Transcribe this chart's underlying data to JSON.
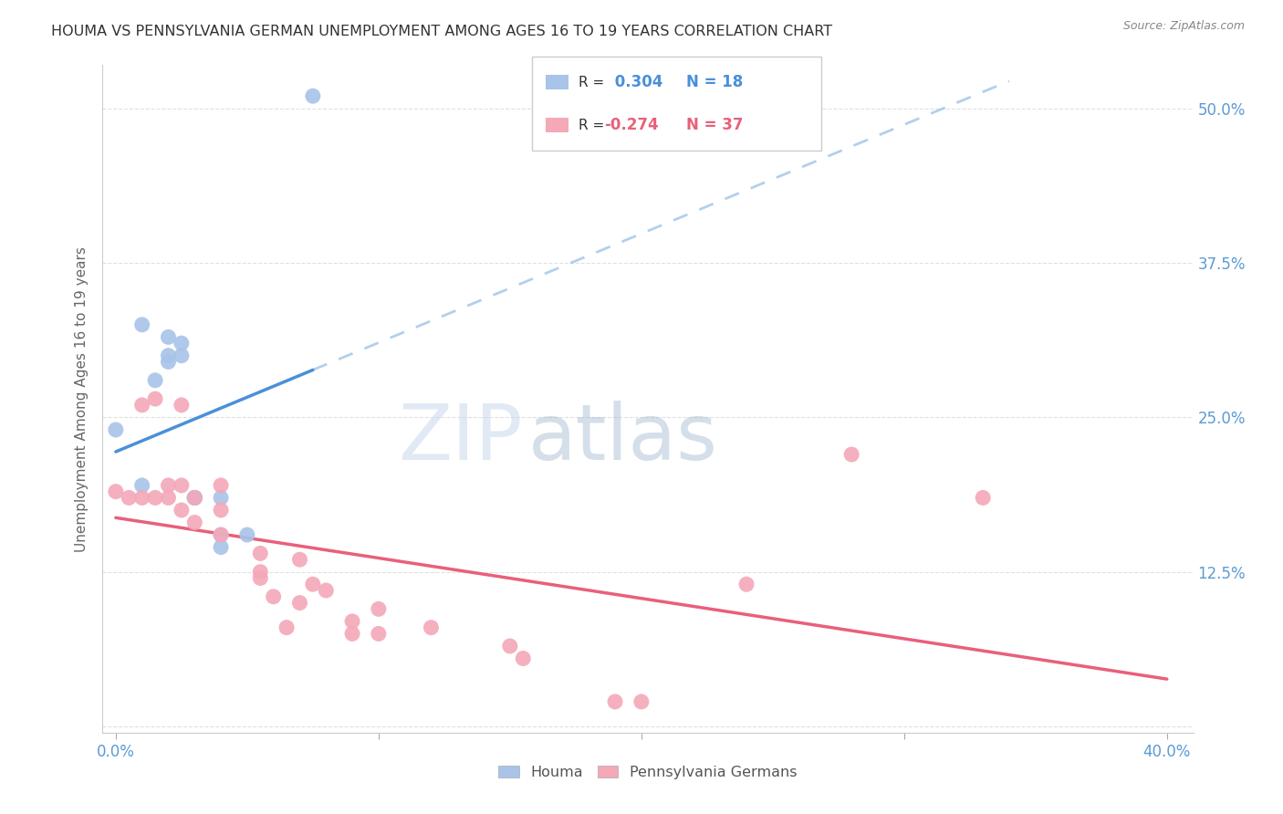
{
  "title": "HOUMA VS PENNSYLVANIA GERMAN UNEMPLOYMENT AMONG AGES 16 TO 19 YEARS CORRELATION CHART",
  "source": "Source: ZipAtlas.com",
  "ylabel": "Unemployment Among Ages 16 to 19 years",
  "y_ticks": [
    0.0,
    0.125,
    0.25,
    0.375,
    0.5
  ],
  "y_tick_labels": [
    "",
    "12.5%",
    "25.0%",
    "37.5%",
    "50.0%"
  ],
  "x_ticks": [
    0.0,
    0.1,
    0.2,
    0.3,
    0.4
  ],
  "xlim": [
    0.0,
    0.4
  ],
  "ylim": [
    0.0,
    0.52
  ],
  "houma_R": 0.304,
  "houma_N": 18,
  "pg_R": -0.274,
  "pg_N": 37,
  "houma_color": "#a8c4e8",
  "pg_color": "#f4a8b8",
  "houma_trend_color": "#4a90d9",
  "pg_trend_color": "#e8607a",
  "houma_trend_dashed_color": "#a0c4e8",
  "background_color": "#ffffff",
  "grid_color": "#cccccc",
  "axis_label_color": "#5b9bd5",
  "title_color": "#333333",
  "houma_points": [
    [
      0.0,
      0.24
    ],
    [
      0.01,
      0.195
    ],
    [
      0.01,
      0.325
    ],
    [
      0.015,
      0.28
    ],
    [
      0.02,
      0.315
    ],
    [
      0.02,
      0.3
    ],
    [
      0.02,
      0.295
    ],
    [
      0.025,
      0.31
    ],
    [
      0.025,
      0.3
    ],
    [
      0.03,
      0.185
    ],
    [
      0.03,
      0.185
    ],
    [
      0.03,
      0.185
    ],
    [
      0.03,
      0.185
    ],
    [
      0.04,
      0.185
    ],
    [
      0.04,
      0.155
    ],
    [
      0.04,
      0.145
    ],
    [
      0.05,
      0.155
    ],
    [
      0.075,
      0.51
    ]
  ],
  "pg_points": [
    [
      0.0,
      0.19
    ],
    [
      0.005,
      0.185
    ],
    [
      0.01,
      0.26
    ],
    [
      0.01,
      0.185
    ],
    [
      0.015,
      0.265
    ],
    [
      0.015,
      0.185
    ],
    [
      0.02,
      0.195
    ],
    [
      0.02,
      0.185
    ],
    [
      0.025,
      0.195
    ],
    [
      0.025,
      0.26
    ],
    [
      0.025,
      0.175
    ],
    [
      0.03,
      0.165
    ],
    [
      0.03,
      0.185
    ],
    [
      0.04,
      0.195
    ],
    [
      0.04,
      0.175
    ],
    [
      0.04,
      0.155
    ],
    [
      0.055,
      0.14
    ],
    [
      0.055,
      0.125
    ],
    [
      0.055,
      0.12
    ],
    [
      0.06,
      0.105
    ],
    [
      0.065,
      0.08
    ],
    [
      0.07,
      0.135
    ],
    [
      0.07,
      0.1
    ],
    [
      0.075,
      0.115
    ],
    [
      0.08,
      0.11
    ],
    [
      0.09,
      0.085
    ],
    [
      0.09,
      0.075
    ],
    [
      0.1,
      0.095
    ],
    [
      0.1,
      0.075
    ],
    [
      0.12,
      0.08
    ],
    [
      0.15,
      0.065
    ],
    [
      0.155,
      0.055
    ],
    [
      0.19,
      0.02
    ],
    [
      0.2,
      0.02
    ],
    [
      0.24,
      0.115
    ],
    [
      0.28,
      0.22
    ],
    [
      0.33,
      0.185
    ]
  ]
}
